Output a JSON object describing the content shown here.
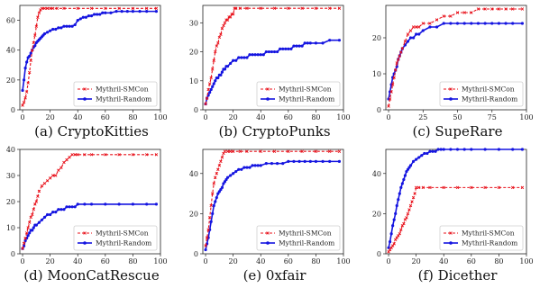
{
  "colors": {
    "smcon": "#e8101a",
    "random": "#1414e0"
  },
  "chart_data": [
    {
      "type": "line",
      "caption": "(a)  CryptoKitties",
      "xlim": [
        -2,
        100
      ],
      "ylim": [
        0,
        70
      ],
      "xticks": [
        0,
        20,
        40,
        60,
        80,
        100
      ],
      "yticks": [
        0,
        20,
        40,
        60
      ],
      "series": [
        {
          "name": "Mythril-SMCon",
          "style": "dashed-x",
          "x": [
            0,
            1,
            2,
            3,
            4,
            5,
            6,
            7,
            8,
            9,
            10,
            11,
            12,
            13,
            14,
            16,
            18,
            20,
            22,
            25,
            30,
            40,
            50,
            60,
            70,
            80,
            90,
            97
          ],
          "y": [
            3,
            5,
            8,
            12,
            18,
            25,
            33,
            40,
            45,
            50,
            56,
            62,
            65,
            67,
            68,
            68,
            68,
            68,
            68,
            68,
            68,
            68,
            68,
            68,
            68,
            68,
            68,
            68
          ]
        },
        {
          "name": "Mythril-Random",
          "style": "solid-o",
          "x": [
            0,
            1,
            2,
            3,
            4,
            5,
            6,
            7,
            8,
            9,
            10,
            11,
            12,
            13,
            14,
            15,
            16,
            18,
            20,
            22,
            24,
            26,
            28,
            30,
            32,
            34,
            36,
            38,
            40,
            42,
            44,
            46,
            48,
            50,
            52,
            54,
            56,
            58,
            60,
            64,
            68,
            72,
            76,
            80,
            85,
            90,
            97
          ],
          "y": [
            13,
            20,
            28,
            32,
            35,
            36,
            38,
            40,
            42,
            43,
            45,
            46,
            47,
            48,
            49,
            50,
            51,
            52,
            53,
            54,
            54,
            55,
            55,
            56,
            56,
            56,
            56,
            57,
            60,
            61,
            62,
            62,
            63,
            63,
            64,
            64,
            64,
            65,
            65,
            65,
            66,
            66,
            66,
            66,
            66,
            66,
            66
          ]
        }
      ]
    },
    {
      "type": "line",
      "caption": "(b)  CryptoPunks",
      "xlim": [
        -2,
        100
      ],
      "ylim": [
        0,
        36
      ],
      "xticks": [
        0,
        20,
        40,
        60,
        80,
        100
      ],
      "yticks": [
        0,
        10,
        20,
        30
      ],
      "series": [
        {
          "name": "Mythril-SMCon",
          "style": "dashed-x",
          "x": [
            0,
            1,
            2,
            3,
            4,
            5,
            6,
            7,
            8,
            9,
            10,
            11,
            12,
            13,
            14,
            15,
            16,
            17,
            18,
            19,
            20,
            21,
            22,
            25,
            30,
            40,
            50,
            60,
            70,
            80,
            90,
            97
          ],
          "y": [
            2,
            4,
            7,
            9,
            11,
            14,
            17,
            20,
            22,
            23,
            25,
            26,
            28,
            29,
            30,
            31,
            31,
            32,
            32,
            33,
            33,
            35,
            35,
            35,
            35,
            35,
            35,
            35,
            35,
            35,
            35,
            35
          ]
        },
        {
          "name": "Mythril-Random",
          "style": "solid-o",
          "x": [
            0,
            1,
            2,
            3,
            4,
            5,
            6,
            7,
            8,
            9,
            10,
            11,
            12,
            13,
            14,
            15,
            16,
            18,
            20,
            22,
            24,
            26,
            28,
            30,
            32,
            34,
            36,
            38,
            40,
            42,
            44,
            46,
            48,
            50,
            52,
            54,
            56,
            58,
            60,
            62,
            64,
            66,
            68,
            70,
            72,
            74,
            76,
            80,
            85,
            90,
            97
          ],
          "y": [
            2,
            4,
            5,
            6,
            7,
            8,
            9,
            10,
            11,
            11,
            12,
            12,
            13,
            14,
            14,
            15,
            15,
            16,
            17,
            17,
            18,
            18,
            18,
            18,
            19,
            19,
            19,
            19,
            19,
            19,
            20,
            20,
            20,
            20,
            20,
            21,
            21,
            21,
            21,
            21,
            22,
            22,
            22,
            22,
            23,
            23,
            23,
            23,
            23,
            24,
            24
          ]
        }
      ]
    },
    {
      "type": "line",
      "caption": "(c)  SupeRare",
      "xlim": [
        -2,
        100
      ],
      "ylim": [
        0,
        29
      ],
      "xticks": [
        0,
        25,
        50,
        75,
        100
      ],
      "yticks": [
        0,
        10,
        20
      ],
      "series": [
        {
          "name": "Mythril-SMCon",
          "style": "dashed-x",
          "x": [
            0,
            1,
            2,
            3,
            4,
            5,
            6,
            7,
            8,
            9,
            10,
            12,
            14,
            16,
            18,
            20,
            22,
            25,
            30,
            35,
            40,
            45,
            50,
            55,
            60,
            65,
            70,
            75,
            80,
            85,
            90,
            97
          ],
          "y": [
            1,
            3,
            5,
            7,
            9,
            11,
            13,
            14,
            15,
            16,
            17,
            19,
            21,
            22,
            23,
            23,
            23,
            24,
            24,
            25,
            26,
            26,
            27,
            27,
            27,
            28,
            28,
            28,
            28,
            28,
            28,
            28
          ]
        },
        {
          "name": "Mythril-Random",
          "style": "solid-o",
          "x": [
            0,
            1,
            2,
            3,
            4,
            5,
            6,
            7,
            8,
            9,
            10,
            12,
            14,
            16,
            18,
            20,
            22,
            25,
            30,
            35,
            40,
            45,
            50,
            55,
            60,
            65,
            70,
            75,
            80,
            85,
            90,
            97
          ],
          "y": [
            3,
            5,
            7,
            9,
            10,
            11,
            12,
            14,
            15,
            16,
            17,
            18,
            19,
            20,
            20,
            21,
            21,
            22,
            23,
            23,
            24,
            24,
            24,
            24,
            24,
            24,
            24,
            24,
            24,
            24,
            24,
            24
          ]
        }
      ]
    },
    {
      "type": "line",
      "caption": "(d)  MoonCatRescue",
      "xlim": [
        -2,
        100
      ],
      "ylim": [
        0,
        40
      ],
      "xticks": [
        0,
        20,
        40,
        60,
        80,
        100
      ],
      "yticks": [
        0,
        10,
        20,
        30,
        40
      ],
      "series": [
        {
          "name": "Mythril-SMCon",
          "style": "dashed-x",
          "x": [
            0,
            1,
            2,
            3,
            4,
            5,
            6,
            7,
            8,
            9,
            10,
            11,
            12,
            14,
            16,
            18,
            20,
            22,
            24,
            26,
            28,
            30,
            32,
            34,
            36,
            38,
            40,
            45,
            50,
            60,
            70,
            80,
            90,
            97
          ],
          "y": [
            2,
            4,
            6,
            8,
            10,
            12,
            14,
            15,
            17,
            19,
            20,
            22,
            24,
            26,
            27,
            28,
            29,
            30,
            30,
            32,
            33,
            35,
            36,
            37,
            38,
            38,
            38,
            38,
            38,
            38,
            38,
            38,
            38,
            38
          ]
        },
        {
          "name": "Mythril-Random",
          "style": "solid-o",
          "x": [
            0,
            1,
            2,
            3,
            4,
            5,
            6,
            7,
            8,
            9,
            10,
            12,
            14,
            16,
            18,
            20,
            22,
            24,
            26,
            28,
            30,
            32,
            34,
            36,
            38,
            40,
            45,
            50,
            60,
            70,
            80,
            90,
            97
          ],
          "y": [
            2,
            3,
            5,
            6,
            7,
            8,
            9,
            9,
            10,
            11,
            11,
            12,
            13,
            14,
            15,
            15,
            16,
            16,
            17,
            17,
            17,
            18,
            18,
            18,
            18,
            19,
            19,
            19,
            19,
            19,
            19,
            19,
            19
          ]
        }
      ]
    },
    {
      "type": "line",
      "caption": "(e)  0xfair",
      "xlim": [
        -2,
        100
      ],
      "ylim": [
        0,
        52
      ],
      "xticks": [
        0,
        20,
        40,
        60,
        80,
        100
      ],
      "yticks": [
        0,
        20,
        40
      ],
      "series": [
        {
          "name": "Mythril-SMCon",
          "style": "dashed-x",
          "x": [
            0,
            1,
            2,
            3,
            4,
            5,
            6,
            7,
            8,
            9,
            10,
            11,
            12,
            13,
            14,
            16,
            18,
            20,
            25,
            30,
            40,
            50,
            60,
            70,
            80,
            90,
            97
          ],
          "y": [
            4,
            8,
            12,
            18,
            24,
            30,
            35,
            38,
            40,
            42,
            44,
            46,
            48,
            50,
            51,
            51,
            51,
            51,
            51,
            51,
            51,
            51,
            51,
            51,
            51,
            51,
            51
          ]
        },
        {
          "name": "Mythril-Random",
          "style": "solid-o",
          "x": [
            0,
            1,
            2,
            3,
            4,
            5,
            6,
            7,
            8,
            9,
            10,
            11,
            12,
            13,
            14,
            15,
            16,
            18,
            20,
            22,
            24,
            26,
            28,
            30,
            32,
            34,
            36,
            38,
            40,
            44,
            48,
            52,
            56,
            60,
            64,
            68,
            72,
            76,
            80,
            85,
            90,
            97
          ],
          "y": [
            2,
            5,
            8,
            12,
            16,
            20,
            24,
            26,
            28,
            30,
            31,
            32,
            33,
            35,
            36,
            37,
            38,
            39,
            40,
            41,
            42,
            42,
            43,
            43,
            43,
            44,
            44,
            44,
            44,
            45,
            45,
            45,
            45,
            46,
            46,
            46,
            46,
            46,
            46,
            46,
            46,
            46
          ]
        }
      ]
    },
    {
      "type": "line",
      "caption": "(f)  Dicether",
      "xlim": [
        -2,
        100
      ],
      "ylim": [
        0,
        52
      ],
      "xticks": [
        0,
        20,
        40,
        60,
        80,
        100
      ],
      "yticks": [
        0,
        20,
        40
      ],
      "series": [
        {
          "name": "Mythril-SMCon",
          "style": "dashed-x",
          "x": [
            0,
            1,
            2,
            3,
            4,
            5,
            6,
            7,
            8,
            9,
            10,
            11,
            12,
            13,
            14,
            15,
            16,
            17,
            18,
            19,
            20,
            22,
            25,
            30,
            40,
            50,
            60,
            70,
            80,
            90,
            97
          ],
          "y": [
            1,
            2,
            3,
            4,
            5,
            7,
            8,
            9,
            10,
            12,
            14,
            15,
            17,
            18,
            20,
            22,
            24,
            26,
            28,
            30,
            33,
            33,
            33,
            33,
            33,
            33,
            33,
            33,
            33,
            33,
            33
          ]
        },
        {
          "name": "Mythril-Random",
          "style": "solid-o",
          "x": [
            0,
            1,
            2,
            3,
            4,
            5,
            6,
            7,
            8,
            9,
            10,
            11,
            12,
            13,
            14,
            15,
            16,
            18,
            20,
            22,
            24,
            26,
            28,
            30,
            32,
            34,
            36,
            38,
            40,
            45,
            50,
            55,
            60,
            70,
            80,
            90,
            97
          ],
          "y": [
            3,
            6,
            10,
            14,
            17,
            20,
            24,
            27,
            30,
            33,
            35,
            37,
            39,
            41,
            42,
            43,
            44,
            46,
            47,
            48,
            49,
            50,
            50,
            51,
            51,
            51,
            52,
            52,
            52,
            52,
            52,
            52,
            52,
            52,
            52,
            52,
            52
          ]
        }
      ]
    }
  ]
}
